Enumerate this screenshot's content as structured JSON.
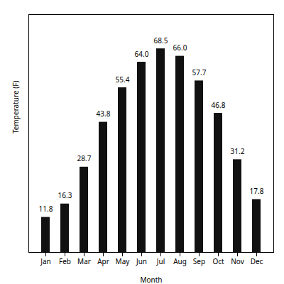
{
  "chart_data": {
    "type": "bar",
    "categories": [
      "Jan",
      "Feb",
      "Mar",
      "Apr",
      "May",
      "Jun",
      "Jul",
      "Aug",
      "Sep",
      "Oct",
      "Nov",
      "Dec"
    ],
    "values": [
      11.8,
      16.3,
      28.7,
      43.8,
      55.4,
      64.0,
      68.5,
      66.0,
      57.7,
      46.8,
      31.2,
      17.8
    ],
    "value_labels": [
      "11.8",
      "16.3",
      "28.7",
      "43.8",
      "55.4",
      "64.0",
      "68.5",
      "66.0",
      "57.7",
      "46.8",
      "31.2",
      "17.8"
    ],
    "color": "#111111",
    "xlabel": "Month",
    "ylabel": "Temperature (F)",
    "ylim": [
      0,
      80
    ],
    "data_labels": true,
    "tick_labels": "x"
  }
}
